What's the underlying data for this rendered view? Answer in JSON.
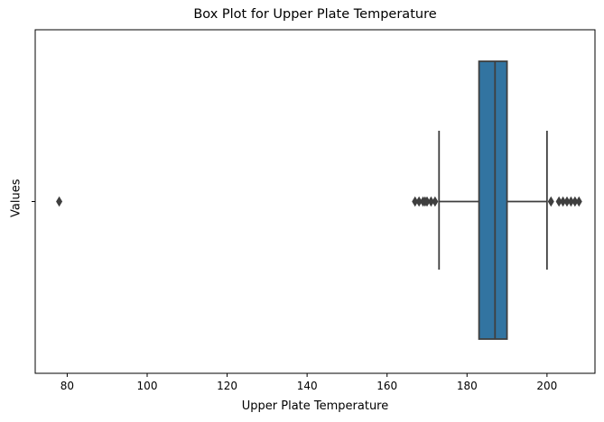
{
  "chart_data": {
    "type": "box",
    "title": "Box Plot for Upper Plate Temperature",
    "xlabel": "Upper Plate Temperature",
    "ylabel": "Values",
    "xlim": [
      72,
      212
    ],
    "xticks": [
      80,
      100,
      120,
      140,
      160,
      180,
      200
    ],
    "yticks": [
      ""
    ],
    "grid": false,
    "box": {
      "q1": 183,
      "median": 187,
      "q3": 190,
      "whisker_low": 173,
      "whisker_high": 200,
      "color": "#3274a1",
      "line_color": "#3f3f3f"
    },
    "outliers": [
      78,
      167,
      168,
      169,
      169.5,
      170,
      171,
      172,
      201,
      203,
      204,
      205,
      206,
      207,
      208
    ]
  }
}
